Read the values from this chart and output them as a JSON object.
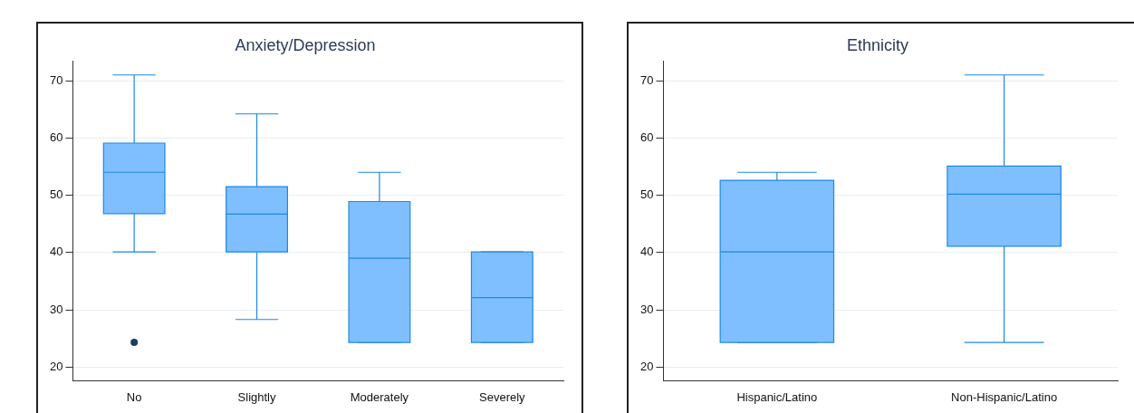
{
  "chart_data": [
    {
      "type": "box",
      "title": "Anxiety/Depression",
      "categories": [
        "No",
        "Slightly",
        "Moderately",
        "Severely"
      ],
      "series": [
        {
          "color": "#80bfff",
          "boxes": [
            {
              "low": 40.1,
              "q1": 46.8,
              "median": 54,
              "q3": 59.1,
              "high": 71,
              "outliers": [
                24.3
              ]
            },
            {
              "low": 28.3,
              "q1": 40.1,
              "median": 46.7,
              "q3": 51.5,
              "high": 64.2
            },
            {
              "low": 24.3,
              "q1": 24.3,
              "median": 39,
              "q3": 48.9,
              "high": 54
            },
            {
              "low": 24.3,
              "q1": 24.3,
              "median": 32.1,
              "q3": 40.1,
              "high": 40.1
            }
          ]
        }
      ],
      "ylim": [
        17.6,
        73.4
      ],
      "yticks": [
        20,
        30,
        40,
        50,
        60,
        70
      ],
      "grid": "y",
      "legend": false
    },
    {
      "type": "box",
      "title": "Ethnicity",
      "categories": [
        "Hispanic/Latino",
        "Non-Hispanic/Latino"
      ],
      "series": [
        {
          "color": "#80bfff",
          "boxes": [
            {
              "low": 24.3,
              "q1": 24.3,
              "median": 40.1,
              "q3": 52.6,
              "high": 54
            },
            {
              "low": 24.3,
              "q1": 41.1,
              "median": 50.2,
              "q3": 55.1,
              "high": 71
            }
          ]
        }
      ],
      "ylim": [
        17.6,
        73.4
      ],
      "yticks": [
        20,
        30,
        40,
        50,
        60,
        70
      ],
      "grid": "y",
      "legend": false
    }
  ]
}
